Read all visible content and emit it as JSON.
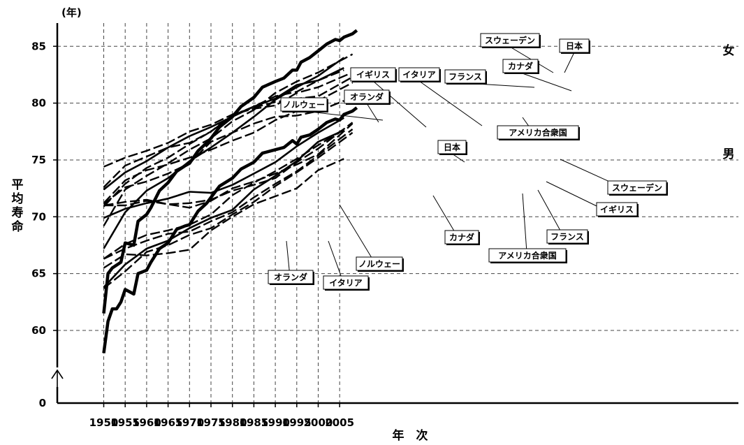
{
  "chart_data": {
    "type": "line",
    "title": "",
    "xlabel": "年　次",
    "ylabel": "平均寿命",
    "y_unit": "(年)",
    "xlim": [
      1950,
      2009
    ],
    "ylim": [
      57,
      87
    ],
    "y_axis_break": true,
    "y_break_label": "0",
    "x_ticks": [
      "1950",
      "1955",
      "1960",
      "1965",
      "1970",
      "1975",
      "1980",
      "1985",
      "1990",
      "1995",
      "2000",
      "2005"
    ],
    "y_ticks": [
      "60",
      "65",
      "70",
      "75",
      "80",
      "85"
    ],
    "grid": true,
    "group_labels": {
      "female": "女",
      "male": "男"
    },
    "series": [
      {
        "name": "日本",
        "sex": "女",
        "style": "thick",
        "x": [
          1950,
          1951,
          1952,
          1954,
          1955,
          1957,
          1958,
          1960,
          1961,
          1963,
          1965,
          1967,
          1969,
          1970,
          1972,
          1974,
          1975,
          1977,
          1980,
          1982,
          1985,
          1987,
          1990,
          1992,
          1994,
          1995,
          1996,
          1998,
          2000,
          2002,
          2004,
          2005,
          2006,
          2008,
          2009
        ],
        "y": [
          61.5,
          65.0,
          65.5,
          66.0,
          67.7,
          67.5,
          69.6,
          70.2,
          70.8,
          72.3,
          73.0,
          74.0,
          74.5,
          74.7,
          75.8,
          76.5,
          76.9,
          77.9,
          78.8,
          79.7,
          80.5,
          81.4,
          81.9,
          82.2,
          82.9,
          82.9,
          83.6,
          84.0,
          84.6,
          85.2,
          85.6,
          85.5,
          85.8,
          86.1,
          86.4
        ]
      },
      {
        "name": "スウェーデン",
        "sex": "女",
        "style": "solid",
        "x": [
          1950,
          1955,
          1960,
          1965,
          1970,
          1975,
          1980,
          1985,
          1990,
          1995,
          2000,
          2006
        ],
        "y": [
          72.4,
          73.9,
          74.9,
          76.1,
          77.1,
          77.9,
          78.8,
          79.7,
          80.4,
          81.6,
          82.0,
          83.1
        ]
      },
      {
        "name": "ノルウェー",
        "sex": "女",
        "style": "dashed",
        "x": [
          1950,
          1955,
          1960,
          1965,
          1970,
          1975,
          1980,
          1985,
          1990,
          1995,
          2000,
          2008
        ],
        "y": [
          74.4,
          75.2,
          75.8,
          76.5,
          77.5,
          78.1,
          79.0,
          79.5,
          79.8,
          80.9,
          81.4,
          82.7
        ]
      },
      {
        "name": "オランダ",
        "sex": "女",
        "style": "dashed",
        "x": [
          1950,
          1955,
          1960,
          1965,
          1970,
          1975,
          1980,
          1985,
          1990,
          1995,
          2000,
          2008
        ],
        "y": [
          72.6,
          74.5,
          75.3,
          76.1,
          76.5,
          77.5,
          79.0,
          79.6,
          80.1,
          80.4,
          80.6,
          82.3
        ]
      },
      {
        "name": "フランス",
        "sex": "女",
        "style": "dashed",
        "x": [
          1950,
          1955,
          1960,
          1965,
          1970,
          1975,
          1980,
          1985,
          1990,
          1995,
          2000,
          2008
        ],
        "y": [
          69.2,
          72.4,
          73.6,
          74.7,
          75.9,
          76.9,
          78.4,
          79.4,
          80.9,
          81.9,
          82.7,
          84.3
        ]
      },
      {
        "name": "カナダ",
        "sex": "女",
        "style": "dashed",
        "x": [
          1950,
          1955,
          1960,
          1965,
          1970,
          1975,
          1980,
          1985,
          1990,
          1995,
          2000,
          2006
        ],
        "y": [
          70.9,
          72.9,
          74.3,
          75.2,
          76.4,
          77.5,
          78.9,
          79.7,
          80.6,
          81.0,
          82.0,
          82.9
        ]
      },
      {
        "name": "イタリア",
        "sex": "女",
        "style": "solid",
        "x": [
          1950,
          1955,
          1960,
          1965,
          1970,
          1975,
          1980,
          1985,
          1990,
          1995,
          2000,
          2006
        ],
        "y": [
          67.2,
          70.4,
          72.3,
          73.4,
          74.9,
          76.1,
          77.4,
          78.8,
          80.3,
          81.4,
          82.4,
          84.0
        ]
      },
      {
        "name": "イギリス",
        "sex": "女",
        "style": "dashed",
        "x": [
          1950,
          1955,
          1960,
          1965,
          1970,
          1975,
          1980,
          1985,
          1990,
          1995,
          2000,
          2008
        ],
        "y": [
          71.2,
          73.2,
          74.1,
          74.6,
          75.2,
          75.9,
          76.7,
          77.4,
          78.5,
          79.3,
          80.2,
          81.8
        ]
      },
      {
        "name": "アメリカ合衆国",
        "sex": "女",
        "style": "dashed",
        "x": [
          1950,
          1955,
          1960,
          1965,
          1970,
          1975,
          1980,
          1985,
          1990,
          1995,
          2000,
          2006
        ],
        "y": [
          71.1,
          72.6,
          73.1,
          73.8,
          74.7,
          76.6,
          77.4,
          78.2,
          78.8,
          78.9,
          79.3,
          80.2
        ]
      },
      {
        "name": "日本",
        "sex": "男",
        "style": "thick",
        "x": [
          1950,
          1951,
          1952,
          1953,
          1954,
          1955,
          1957,
          1958,
          1960,
          1961,
          1963,
          1965,
          1967,
          1969,
          1970,
          1972,
          1974,
          1975,
          1977,
          1980,
          1982,
          1985,
          1987,
          1990,
          1992,
          1994,
          1995,
          1996,
          1998,
          2000,
          2002,
          2004,
          2005,
          2006,
          2008,
          2009
        ],
        "y": [
          58.0,
          60.8,
          61.9,
          61.9,
          62.5,
          63.6,
          63.2,
          65.0,
          65.3,
          66.0,
          67.2,
          67.7,
          68.9,
          69.2,
          69.3,
          70.5,
          71.2,
          71.7,
          72.7,
          73.4,
          74.2,
          74.8,
          75.6,
          75.9,
          76.1,
          76.7,
          76.4,
          77.0,
          77.2,
          77.7,
          78.3,
          78.6,
          78.5,
          79.0,
          79.3,
          79.6
        ]
      },
      {
        "name": "スウェーデン",
        "sex": "男",
        "style": "solid",
        "x": [
          1950,
          1955,
          1960,
          1965,
          1970,
          1975,
          1980,
          1985,
          1990,
          1995,
          2000,
          2006
        ],
        "y": [
          69.9,
          70.7,
          71.2,
          71.6,
          72.2,
          72.1,
          72.8,
          73.8,
          74.8,
          76.2,
          77.4,
          78.7
        ]
      },
      {
        "name": "ノルウェー",
        "sex": "男",
        "style": "dashed",
        "x": [
          1950,
          1955,
          1960,
          1965,
          1970,
          1975,
          1980,
          1985,
          1990,
          1995,
          2000,
          2008
        ],
        "y": [
          71.0,
          71.3,
          71.5,
          71.1,
          71.2,
          71.5,
          72.3,
          72.8,
          73.4,
          74.8,
          76.0,
          78.3
        ]
      },
      {
        "name": "オランダ",
        "sex": "男",
        "style": "dashed",
        "x": [
          1950,
          1955,
          1960,
          1965,
          1970,
          1975,
          1980,
          1985,
          1990,
          1995,
          2000,
          2008
        ],
        "y": [
          71.0,
          71.0,
          71.4,
          71.1,
          70.8,
          71.4,
          72.5,
          73.1,
          73.8,
          74.6,
          75.5,
          78.2
        ]
      },
      {
        "name": "フランス",
        "sex": "男",
        "style": "dashed",
        "x": [
          1950,
          1955,
          1960,
          1965,
          1970,
          1975,
          1980,
          1985,
          1990,
          1995,
          2000,
          2008
        ],
        "y": [
          63.7,
          65.2,
          66.9,
          67.5,
          68.4,
          69.0,
          70.2,
          71.3,
          72.7,
          73.9,
          75.2,
          77.4
        ]
      },
      {
        "name": "カナダ",
        "sex": "男",
        "style": "dashed",
        "x": [
          1950,
          1955,
          1960,
          1965,
          1970,
          1975,
          1980,
          1985,
          1990,
          1995,
          2000,
          2006
        ],
        "y": [
          66.3,
          67.6,
          68.4,
          68.8,
          69.3,
          70.2,
          71.9,
          73.0,
          74.0,
          75.1,
          76.3,
          77.7
        ]
      },
      {
        "name": "イタリア",
        "sex": "男",
        "style": "solid",
        "x": [
          1950,
          1955,
          1960,
          1965,
          1970,
          1975,
          1980,
          1985,
          1990,
          1995,
          2000,
          2006
        ],
        "y": [
          63.8,
          65.8,
          67.2,
          67.9,
          69.0,
          69.9,
          70.6,
          72.4,
          73.6,
          74.9,
          76.6,
          77.6
        ]
      },
      {
        "name": "イギリス",
        "sex": "男",
        "style": "dashed",
        "x": [
          1950,
          1955,
          1960,
          1965,
          1970,
          1975,
          1980,
          1985,
          1990,
          1995,
          2000,
          2008
        ],
        "y": [
          66.3,
          67.2,
          67.9,
          68.5,
          68.7,
          69.6,
          70.4,
          71.7,
          72.9,
          74.0,
          75.4,
          77.7
        ]
      },
      {
        "name": "アメリカ合衆国",
        "sex": "男",
        "style": "dashed",
        "x": [
          1950,
          1955,
          1960,
          1965,
          1970,
          1975,
          1980,
          1985,
          1990,
          1995,
          2000,
          2006
        ],
        "y": [
          65.5,
          66.7,
          66.6,
          66.8,
          67.1,
          68.8,
          70.0,
          71.1,
          71.8,
          72.5,
          74.1,
          75.1
        ]
      }
    ],
    "annotations": [
      {
        "text": "スウェーデン",
        "sex": "女"
      },
      {
        "text": "日本",
        "sex": "女"
      },
      {
        "text": "カナダ",
        "sex": "女"
      },
      {
        "text": "イギリス",
        "sex": "女"
      },
      {
        "text": "イタリア",
        "sex": "女"
      },
      {
        "text": "フランス",
        "sex": "女"
      },
      {
        "text": "オランダ",
        "sex": "女"
      },
      {
        "text": "ノルウェー",
        "sex": "女"
      },
      {
        "text": "アメリカ合衆国",
        "sex": "女"
      },
      {
        "text": "日本",
        "sex": "男"
      },
      {
        "text": "スウェーデン",
        "sex": "男"
      },
      {
        "text": "イギリス",
        "sex": "男"
      },
      {
        "text": "フランス",
        "sex": "男"
      },
      {
        "text": "アメリカ合衆国",
        "sex": "男"
      },
      {
        "text": "カナダ",
        "sex": "男"
      },
      {
        "text": "ノルウェー",
        "sex": "男"
      },
      {
        "text": "イタリア",
        "sex": "男"
      },
      {
        "text": "オランダ",
        "sex": "男"
      }
    ]
  }
}
